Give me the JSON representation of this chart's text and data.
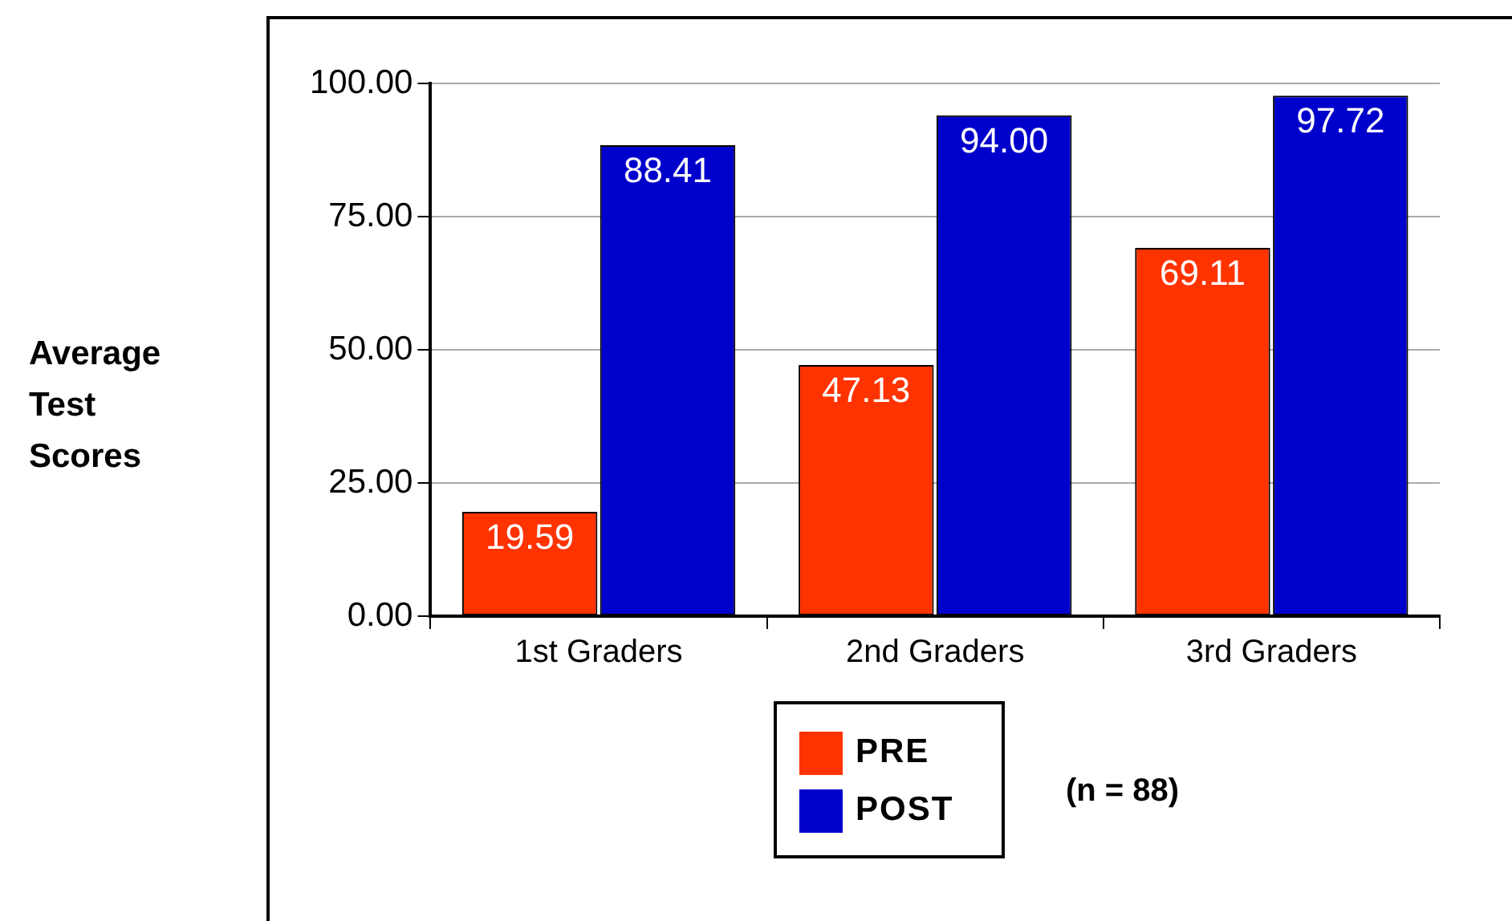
{
  "chart_data": {
    "type": "bar",
    "ylabel": "Average Test Scores",
    "categories": [
      "1st Graders",
      "2nd Graders",
      "3rd Graders"
    ],
    "series": [
      {
        "name": "PRE",
        "color": "#ff3300",
        "values": [
          19.59,
          47.13,
          69.11
        ],
        "value_labels": [
          "19.59",
          "47.13",
          "69.11"
        ]
      },
      {
        "name": "POST",
        "color": "#0000cc",
        "values": [
          88.41,
          94.0,
          97.72
        ],
        "value_labels": [
          "88.41",
          "94.00",
          "97.72"
        ]
      }
    ],
    "ylim": [
      0,
      100
    ],
    "yticks": [
      {
        "value": 0,
        "label": "0.00"
      },
      {
        "value": 25,
        "label": "25.00"
      },
      {
        "value": 50,
        "label": "50.00"
      },
      {
        "value": 75,
        "label": "75.00"
      },
      {
        "value": 100,
        "label": "100.00"
      }
    ],
    "grid": "y",
    "legend": "bottom",
    "annotations": [
      "(n = 88)"
    ]
  }
}
